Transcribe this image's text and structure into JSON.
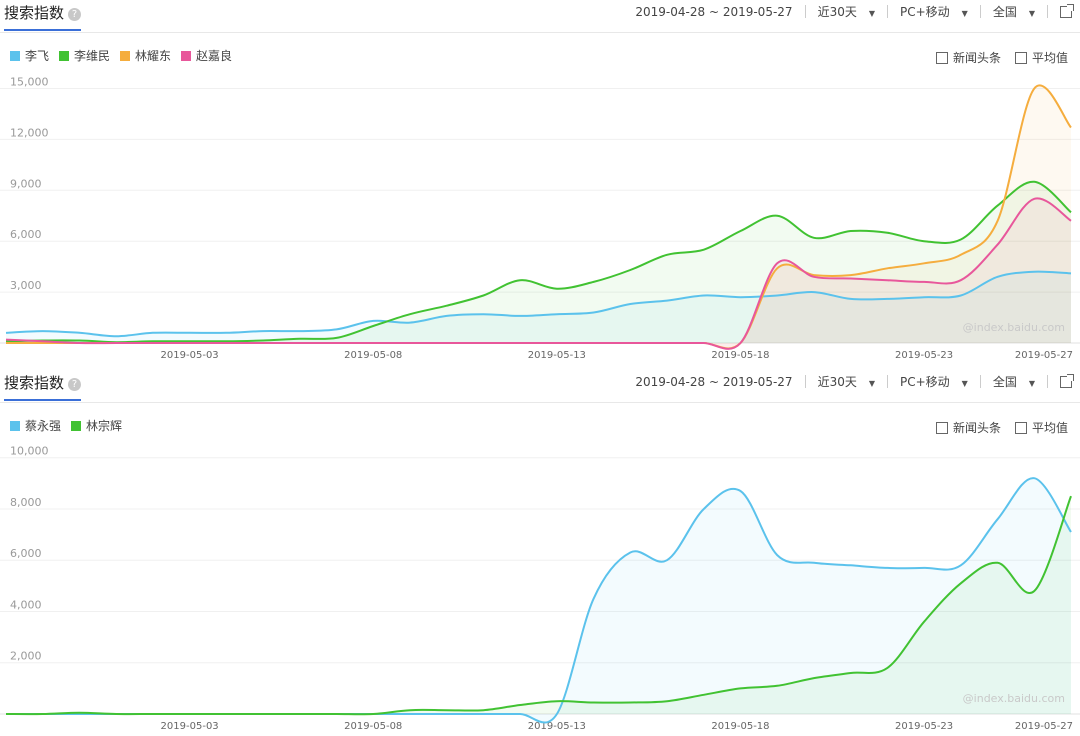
{
  "header": {
    "title": "搜索指数",
    "help_icon": "?",
    "date_range": "2019-04-28 ~ 2019-05-27",
    "period": "近30天",
    "device": "PC+移动",
    "region": "全国"
  },
  "options": {
    "news": "新闻头条",
    "average": "平均值"
  },
  "watermark": "@index.baidu.com",
  "chart_data": [
    {
      "type": "line",
      "x_ticks": [
        "2019-05-03",
        "2019-05-08",
        "2019-05-13",
        "2019-05-18",
        "2019-05-23",
        "2019-05-27"
      ],
      "y_ticks": [
        "15,000",
        "12,000",
        "9,000",
        "6,000",
        "3,000"
      ],
      "ylim": [
        0,
        15500
      ],
      "x": [
        "2019-04-28",
        "2019-04-29",
        "2019-04-30",
        "2019-05-01",
        "2019-05-02",
        "2019-05-03",
        "2019-05-04",
        "2019-05-05",
        "2019-05-06",
        "2019-05-07",
        "2019-05-08",
        "2019-05-09",
        "2019-05-10",
        "2019-05-11",
        "2019-05-12",
        "2019-05-13",
        "2019-05-14",
        "2019-05-15",
        "2019-05-16",
        "2019-05-17",
        "2019-05-18",
        "2019-05-19",
        "2019-05-20",
        "2019-05-21",
        "2019-05-22",
        "2019-05-23",
        "2019-05-24",
        "2019-05-25",
        "2019-05-26",
        "2019-05-27"
      ],
      "series": [
        {
          "name": "李飞",
          "color": "#5bc2ec",
          "values": [
            600,
            700,
            600,
            400,
            600,
            600,
            600,
            700,
            700,
            800,
            1300,
            1200,
            1600,
            1700,
            1600,
            1700,
            1800,
            2300,
            2500,
            2800,
            2700,
            2800,
            3000,
            2600,
            2600,
            2700,
            2800,
            3900,
            4200,
            4100
          ]
        },
        {
          "name": "李维民",
          "color": "#41c232",
          "values": [
            100,
            150,
            150,
            50,
            100,
            100,
            100,
            150,
            250,
            300,
            1000,
            1700,
            2200,
            2800,
            3700,
            3200,
            3600,
            4300,
            5200,
            5500,
            6600,
            7500,
            6200,
            6600,
            6500,
            6000,
            6100,
            8100,
            9500,
            7700
          ]
        },
        {
          "name": "林耀东",
          "color": "#f5ad3e",
          "values": [
            0,
            0,
            0,
            0,
            0,
            0,
            0,
            0,
            0,
            0,
            0,
            0,
            0,
            0,
            0,
            0,
            0,
            0,
            0,
            0,
            0,
            4400,
            4000,
            4000,
            4400,
            4700,
            5200,
            7200,
            15000,
            12700
          ]
        },
        {
          "name": "赵嘉良",
          "color": "#e8579b",
          "values": [
            200,
            100,
            0,
            0,
            0,
            0,
            0,
            0,
            0,
            0,
            0,
            0,
            0,
            0,
            0,
            0,
            0,
            0,
            0,
            0,
            0,
            4700,
            3900,
            3800,
            3700,
            3600,
            3700,
            5800,
            8500,
            7200
          ]
        }
      ]
    },
    {
      "type": "line",
      "x_ticks": [
        "2019-05-03",
        "2019-05-08",
        "2019-05-13",
        "2019-05-18",
        "2019-05-23",
        "2019-05-27"
      ],
      "y_ticks": [
        "10,000",
        "8,000",
        "6,000",
        "4,000",
        "2,000"
      ],
      "ylim": [
        0,
        10300
      ],
      "x": [
        "2019-04-28",
        "2019-04-29",
        "2019-04-30",
        "2019-05-01",
        "2019-05-02",
        "2019-05-03",
        "2019-05-04",
        "2019-05-05",
        "2019-05-06",
        "2019-05-07",
        "2019-05-08",
        "2019-05-09",
        "2019-05-10",
        "2019-05-11",
        "2019-05-12",
        "2019-05-13",
        "2019-05-14",
        "2019-05-15",
        "2019-05-16",
        "2019-05-17",
        "2019-05-18",
        "2019-05-19",
        "2019-05-20",
        "2019-05-21",
        "2019-05-22",
        "2019-05-23",
        "2019-05-24",
        "2019-05-25",
        "2019-05-26",
        "2019-05-27"
      ],
      "series": [
        {
          "name": "蔡永强",
          "color": "#5bc2ec",
          "values": [
            0,
            0,
            0,
            0,
            0,
            0,
            0,
            0,
            0,
            0,
            0,
            0,
            0,
            0,
            0,
            0,
            4500,
            6300,
            6000,
            8000,
            8700,
            6200,
            5900,
            5800,
            5700,
            5700,
            5800,
            7600,
            9200,
            7100
          ]
        },
        {
          "name": "林宗辉",
          "color": "#41c232",
          "values": [
            0,
            0,
            50,
            0,
            0,
            0,
            0,
            0,
            0,
            0,
            0,
            150,
            150,
            150,
            350,
            500,
            450,
            450,
            500,
            750,
            1000,
            1100,
            1400,
            1600,
            1800,
            3600,
            5100,
            5900,
            4800,
            8500
          ]
        }
      ]
    }
  ]
}
